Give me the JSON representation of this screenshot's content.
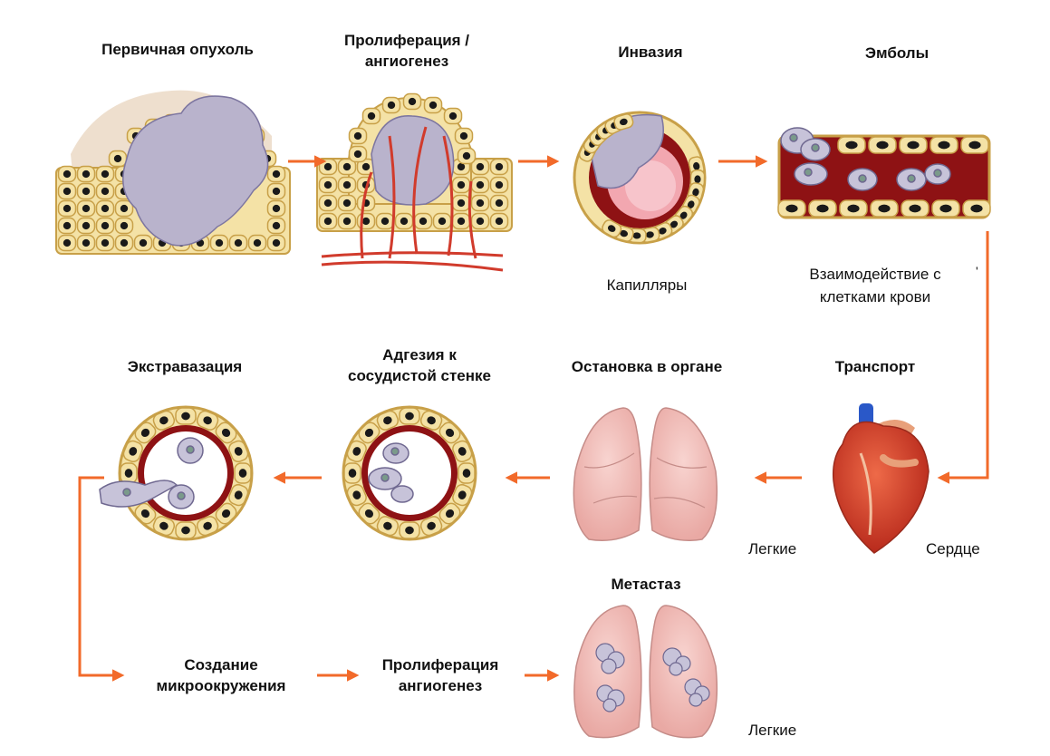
{
  "stages": {
    "primary_tumor": "Первичная опухоль",
    "proliferation": [
      "Пролиферация /",
      "ангиогенез"
    ],
    "invasion": "Инвазия",
    "emboli": "Эмболы",
    "transport": "Транспорт",
    "arrest": "Остановка в органе",
    "adhesion": [
      "Адгезия к",
      "сосудистой стенке"
    ],
    "extravasation": "Экстравазация",
    "microenvironment": [
      "Создание",
      "микроокружения"
    ],
    "proliferation2": [
      "Пролиферация",
      "ангиогенез"
    ],
    "metastasis": "Метастаз"
  },
  "labels": {
    "capillaries": "Капилляры",
    "blood_interaction": [
      "Взаимодействие с",
      "клетками крови"
    ],
    "lungs_top": "Легкие",
    "heart": "Сердце",
    "lungs_bottom": "Легкие",
    "stray_mark": "'"
  },
  "colors": {
    "arrow": "#f26a2a",
    "cell_fill": "#f4e2a6",
    "cell_border": "#c8a048",
    "nucleus": "#1a1a1a",
    "tumor_cell": "#b9b3cc",
    "vessel_red": "#8e1214",
    "lung_pink": "#f2c2be",
    "heart_red": "#d4402a",
    "capillary": "#d13b2c"
  }
}
